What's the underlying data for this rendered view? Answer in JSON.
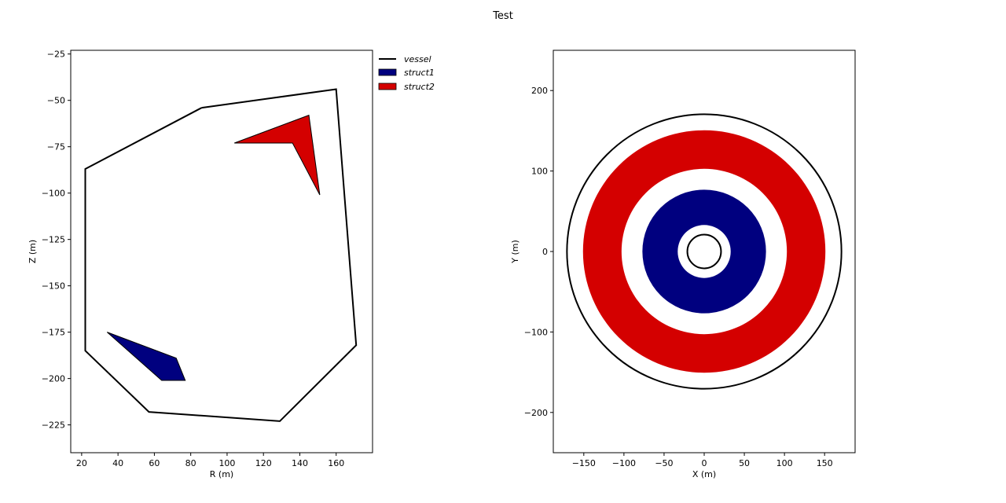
{
  "figure": {
    "title": "Test"
  },
  "chart_data": [
    {
      "type": "line",
      "xlabel": "R (m)",
      "ylabel": "Z (m)",
      "xlim": [
        14,
        180
      ],
      "ylim": [
        -240,
        -23
      ],
      "xticks": [
        20,
        40,
        60,
        80,
        100,
        120,
        140,
        160
      ],
      "yticks": [
        -25,
        -50,
        -75,
        -100,
        -125,
        -150,
        -175,
        -200,
        -225
      ],
      "grid": false,
      "legend_placement": "outside-top-right",
      "series": [
        {
          "name": "vessel",
          "kind": "line",
          "color": "#000000",
          "x": [
            86,
            160,
            171,
            129,
            57,
            22,
            22,
            86
          ],
          "y": [
            -54,
            -44,
            -182,
            -223,
            -218,
            -185,
            -87,
            -54
          ]
        },
        {
          "name": "struct1",
          "kind": "polygon",
          "color": "#00007f",
          "x": [
            34,
            72,
            77,
            64
          ],
          "y": [
            -175,
            -189,
            -201,
            -201
          ]
        },
        {
          "name": "struct2",
          "kind": "polygon",
          "color": "#d40000",
          "x": [
            104,
            145,
            151,
            136
          ],
          "y": [
            -73,
            -58,
            -101,
            -73
          ]
        }
      ]
    },
    {
      "type": "area",
      "xlabel": "X (m)",
      "ylabel": "Y (m)",
      "xlim": [
        -188,
        188
      ],
      "ylim": [
        -250,
        250
      ],
      "xticks": [
        -150,
        -100,
        -50,
        0,
        50,
        100,
        150
      ],
      "yticks": [
        200,
        100,
        0,
        -100,
        -200
      ],
      "grid": false,
      "rings": [
        {
          "kind": "circle",
          "color": "#000000",
          "radius": 171
        },
        {
          "kind": "annulus",
          "color": "#d40000",
          "inner_radius": 103,
          "outer_radius": 151
        },
        {
          "kind": "disc",
          "color": "#00007f",
          "radius": 77
        },
        {
          "kind": "disc",
          "color": "#ffffff",
          "radius": 33
        },
        {
          "kind": "circle",
          "color": "#000000",
          "radius": 21
        }
      ]
    }
  ]
}
